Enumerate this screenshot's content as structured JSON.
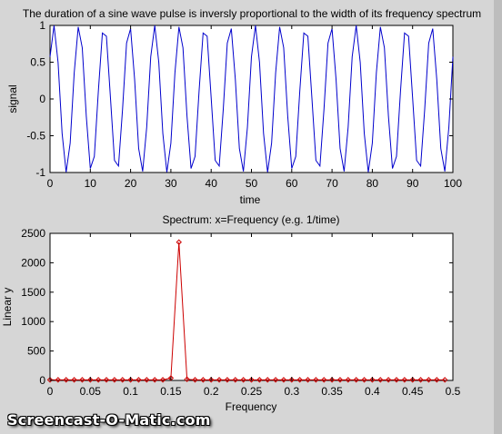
{
  "chart_data": [
    {
      "type": "line",
      "title": "The duration of a sine wave pulse is inversly proportional to the width of its frequency spectrum",
      "xlabel": "time",
      "ylabel": "signal",
      "xlim": [
        0,
        100
      ],
      "ylim": [
        -1,
        1
      ],
      "xticks": [
        "0",
        "10",
        "20",
        "30",
        "40",
        "50",
        "60",
        "70",
        "80",
        "90",
        "100"
      ],
      "yticks": [
        "-1",
        "-0.5",
        "0",
        "0.5",
        "1"
      ],
      "series": [
        {
          "function": "sin",
          "amplitude": 1,
          "frequency": 0.16,
          "phase_deg": 35,
          "samples_per_unit": 1,
          "color": "#0000cc"
        }
      ],
      "grid": false
    },
    {
      "type": "line",
      "title": "Spectrum: x=Frequency (e.g. 1/time)",
      "xlabel": "Frequency",
      "ylabel": "Linear y",
      "xlim": [
        0,
        0.5
      ],
      "ylim": [
        0,
        2500
      ],
      "xticks": [
        "0",
        "0.05",
        "0.1",
        "0.15",
        "0.2",
        "0.25",
        "0.3",
        "0.35",
        "0.4",
        "0.45",
        "0.5"
      ],
      "yticks": [
        "0",
        "500",
        "1000",
        "1500",
        "2000",
        "2500"
      ],
      "series": [
        {
          "x": [
            0,
            0.01,
            0.02,
            0.03,
            0.04,
            0.05,
            0.06,
            0.07,
            0.08,
            0.09,
            0.1,
            0.11,
            0.12,
            0.13,
            0.14,
            0.15,
            0.16,
            0.17,
            0.18,
            0.19,
            0.2,
            0.21,
            0.22,
            0.23,
            0.24,
            0.25,
            0.26,
            0.27,
            0.28,
            0.29,
            0.3,
            0.31,
            0.32,
            0.33,
            0.34,
            0.35,
            0.36,
            0.37,
            0.38,
            0.39,
            0.4,
            0.41,
            0.42,
            0.43,
            0.44,
            0.45,
            0.46,
            0.47,
            0.48,
            0.49
          ],
          "y": [
            10,
            10,
            10,
            10,
            10,
            10,
            10,
            10,
            10,
            10,
            10,
            10,
            10,
            10,
            10,
            40,
            2350,
            20,
            10,
            10,
            10,
            10,
            10,
            10,
            10,
            10,
            10,
            10,
            10,
            10,
            10,
            10,
            10,
            10,
            10,
            10,
            10,
            10,
            10,
            10,
            10,
            10,
            10,
            10,
            10,
            10,
            10,
            10,
            10,
            10
          ],
          "color": "#cc0000",
          "marker": "diamond"
        }
      ],
      "grid": false
    }
  ],
  "watermark": "Screencast-O-Matic.com"
}
